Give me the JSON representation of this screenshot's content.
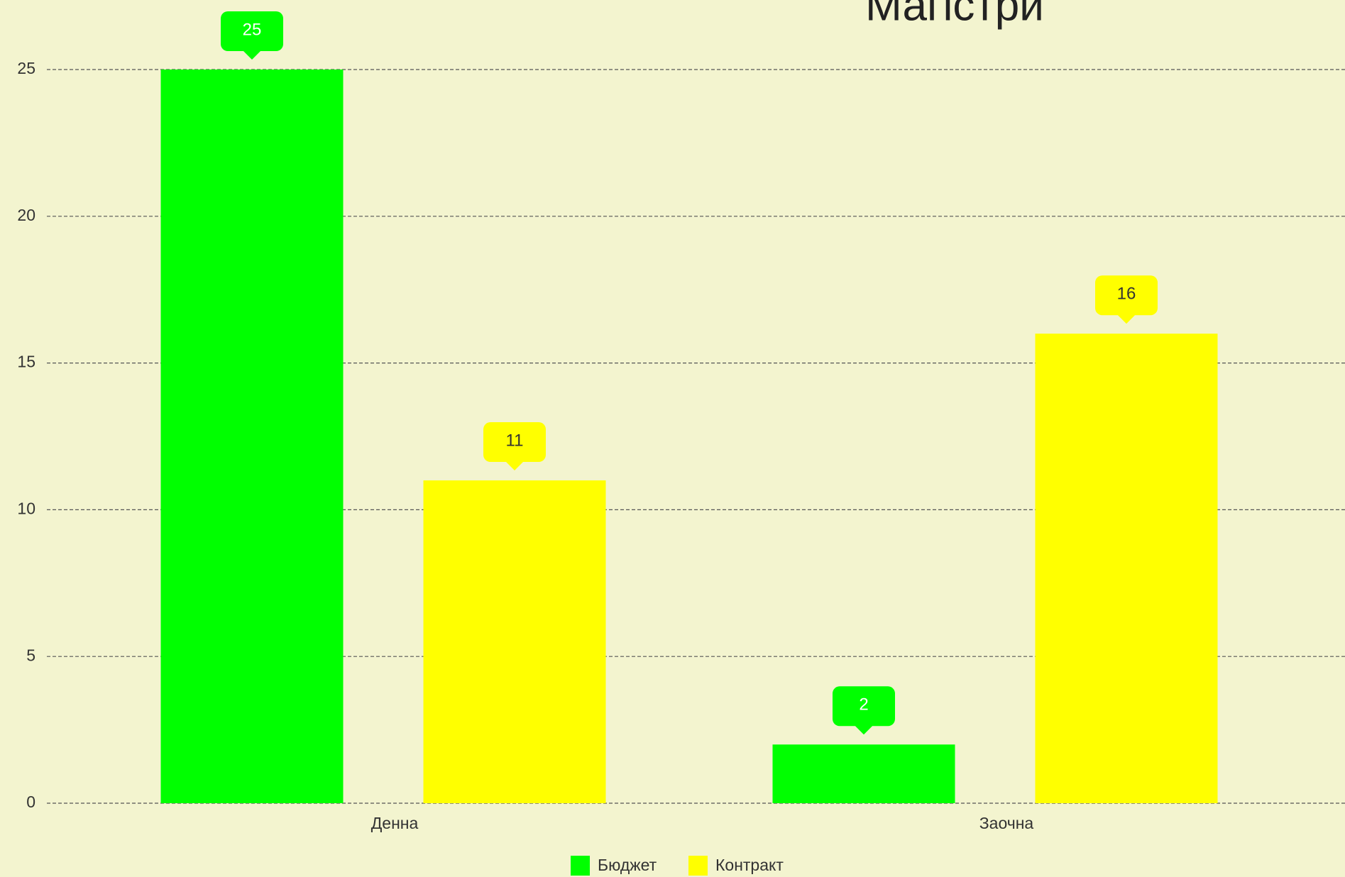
{
  "chart_data": {
    "type": "bar",
    "title": "Магістри",
    "categories": [
      "Денна",
      "Заочна"
    ],
    "series": [
      {
        "name": "Бюджет",
        "color": "#00ff00",
        "values": [
          25,
          2
        ]
      },
      {
        "name": "Контракт",
        "color": "#ffff00",
        "values": [
          11,
          16
        ]
      }
    ],
    "ylim": [
      0,
      25
    ],
    "yticks": [
      0,
      5,
      10,
      15,
      20,
      25
    ],
    "grid": true
  }
}
